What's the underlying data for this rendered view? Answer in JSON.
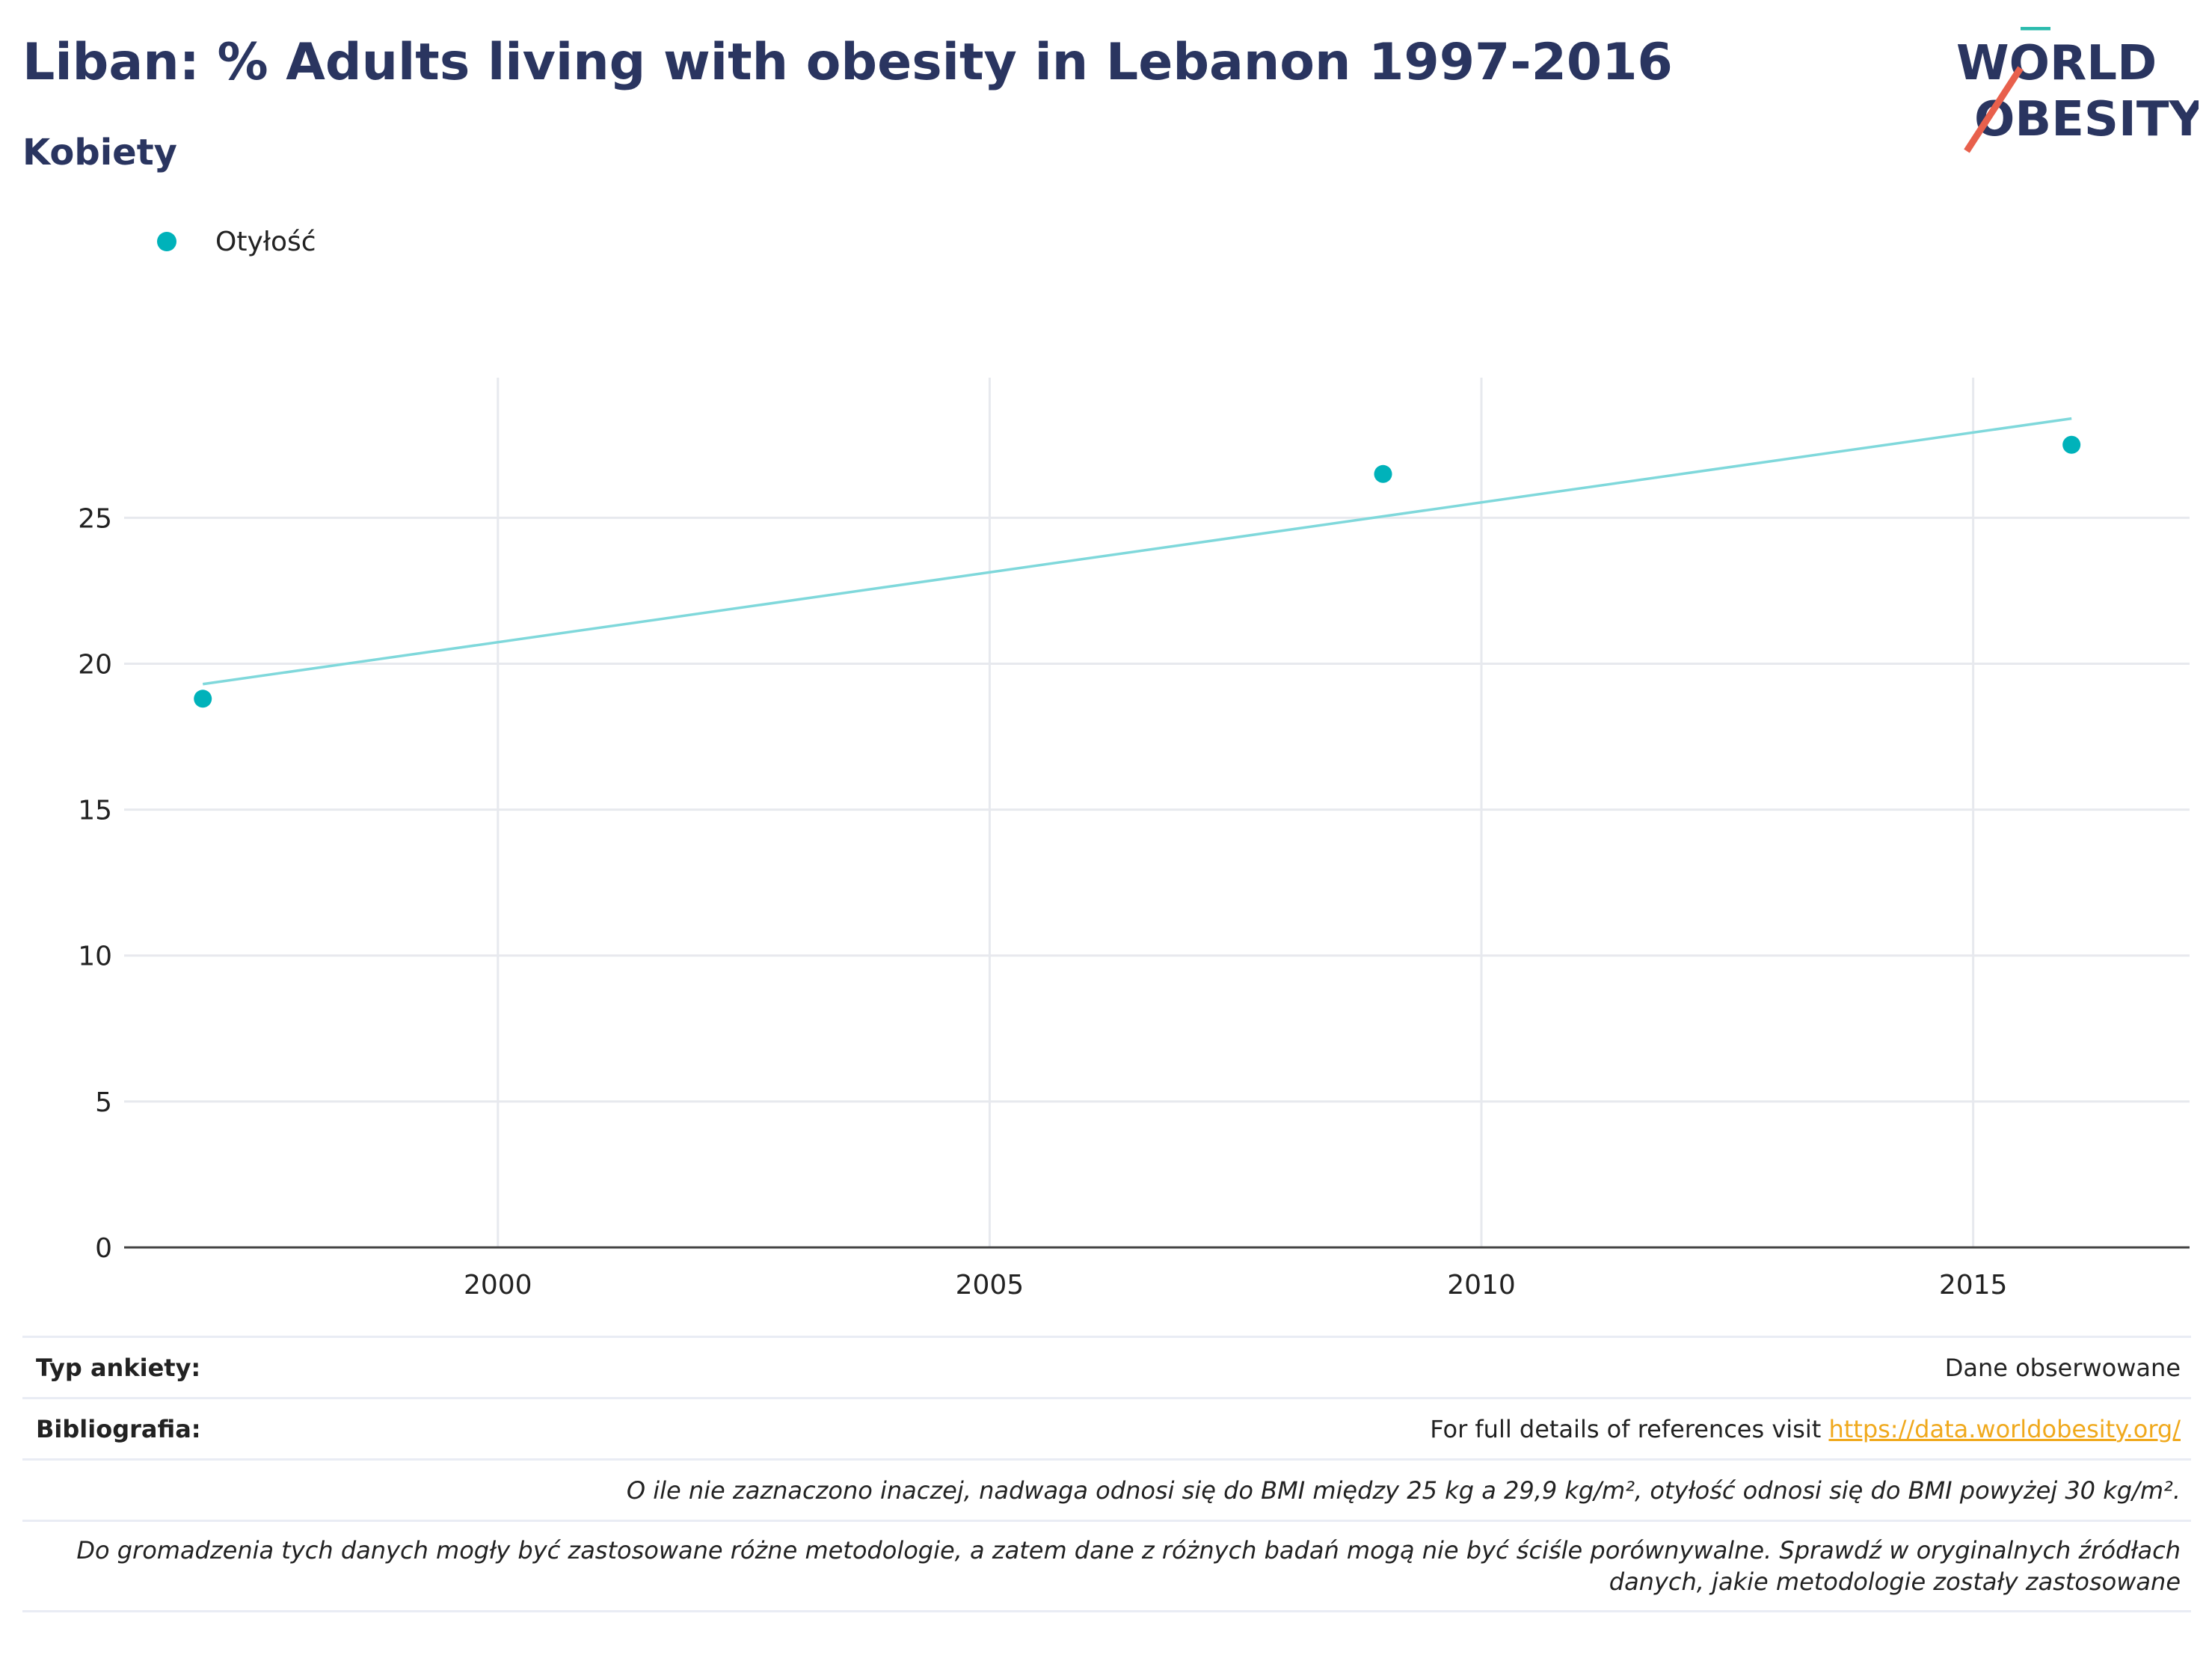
{
  "title": "Liban: % Adults living with obesity in Lebanon 1997-2016",
  "subtitle": "Kobiety",
  "logo": {
    "line1": "WORLD",
    "line2": "OBESITY"
  },
  "colors": {
    "title": "#2a3560",
    "series": "#00b2ba",
    "trend": "#7fd8db",
    "link": "#f0a91d",
    "logo_teal": "#2bbbad",
    "logo_red": "#e8604c"
  },
  "chart_data": {
    "type": "scatter",
    "series": [
      {
        "name": "Otyłość",
        "x": [
          1997,
          2009,
          2016
        ],
        "y": [
          18.8,
          26.5,
          27.5
        ]
      }
    ],
    "trendline": {
      "x": [
        1997,
        2016
      ],
      "y": [
        19.3,
        28.4
      ]
    },
    "xlim": [
      1996.2,
      2017.2
    ],
    "ylim": [
      0,
      29.8
    ],
    "xticks": [
      2000,
      2005,
      2010,
      2015
    ],
    "yticks": [
      0,
      5,
      10,
      15,
      20,
      25
    ],
    "xlabel": "",
    "ylabel": "",
    "grid": true,
    "legend_position": "top-left"
  },
  "footer": {
    "survey_label": "Typ ankiety:",
    "survey_value": "Dane obserwowane",
    "biblio_label": "Bibliografia:",
    "biblio_text": "For full details of references visit",
    "biblio_link": "https://data.worldobesity.org/",
    "note1": "O ile nie zaznaczono inaczej, nadwaga odnosi się do BMI między 25 kg a 29,9 kg/m², otyłość odnosi się do BMI powyżej 30 kg/m².",
    "note2_line1": "Do gromadzenia tych danych mogły być zastosowane różne metodologie, a zatem dane z różnych badań mogą nie być ściśle porównywalne. Sprawdź w oryginalnych źródłach",
    "note2_line2": "danych, jakie metodologie zostały zastosowane"
  }
}
